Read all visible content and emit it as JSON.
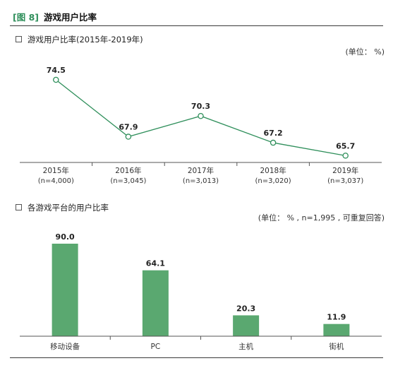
{
  "header": {
    "tag": "[图 8]",
    "title": "游戏用户比率"
  },
  "chart_data": [
    {
      "type": "line",
      "title": "游戏用户比率(2015年-2019年)",
      "unit_label": "(单位：  %)",
      "categories": [
        "2015年",
        "2016年",
        "2017年",
        "2018年",
        "2019年"
      ],
      "sample_sizes": [
        "(n=4,000)",
        "(n=3,045)",
        "(n=3,013)",
        "(n=3,020)",
        "(n=3,037)"
      ],
      "values": [
        74.5,
        67.9,
        70.3,
        67.2,
        65.7
      ],
      "value_labels": [
        "74.5",
        "67.9",
        "70.3",
        "67.2",
        "65.7"
      ],
      "color": "#2f8f5b",
      "legend": "none"
    },
    {
      "type": "bar",
      "title": "各游戏平台的用户比率",
      "unit_label": "(单位：  % ,  n=1,995 ,  可重复回答)",
      "categories": [
        "移动设备",
        "PC",
        "主机",
        "街机"
      ],
      "values": [
        90.0,
        64.1,
        20.3,
        11.9
      ],
      "value_labels": [
        "90.0",
        "64.1",
        "20.3",
        "11.9"
      ],
      "color": "#5aa870",
      "ylim": [
        0,
        100
      ],
      "legend": "none"
    }
  ]
}
